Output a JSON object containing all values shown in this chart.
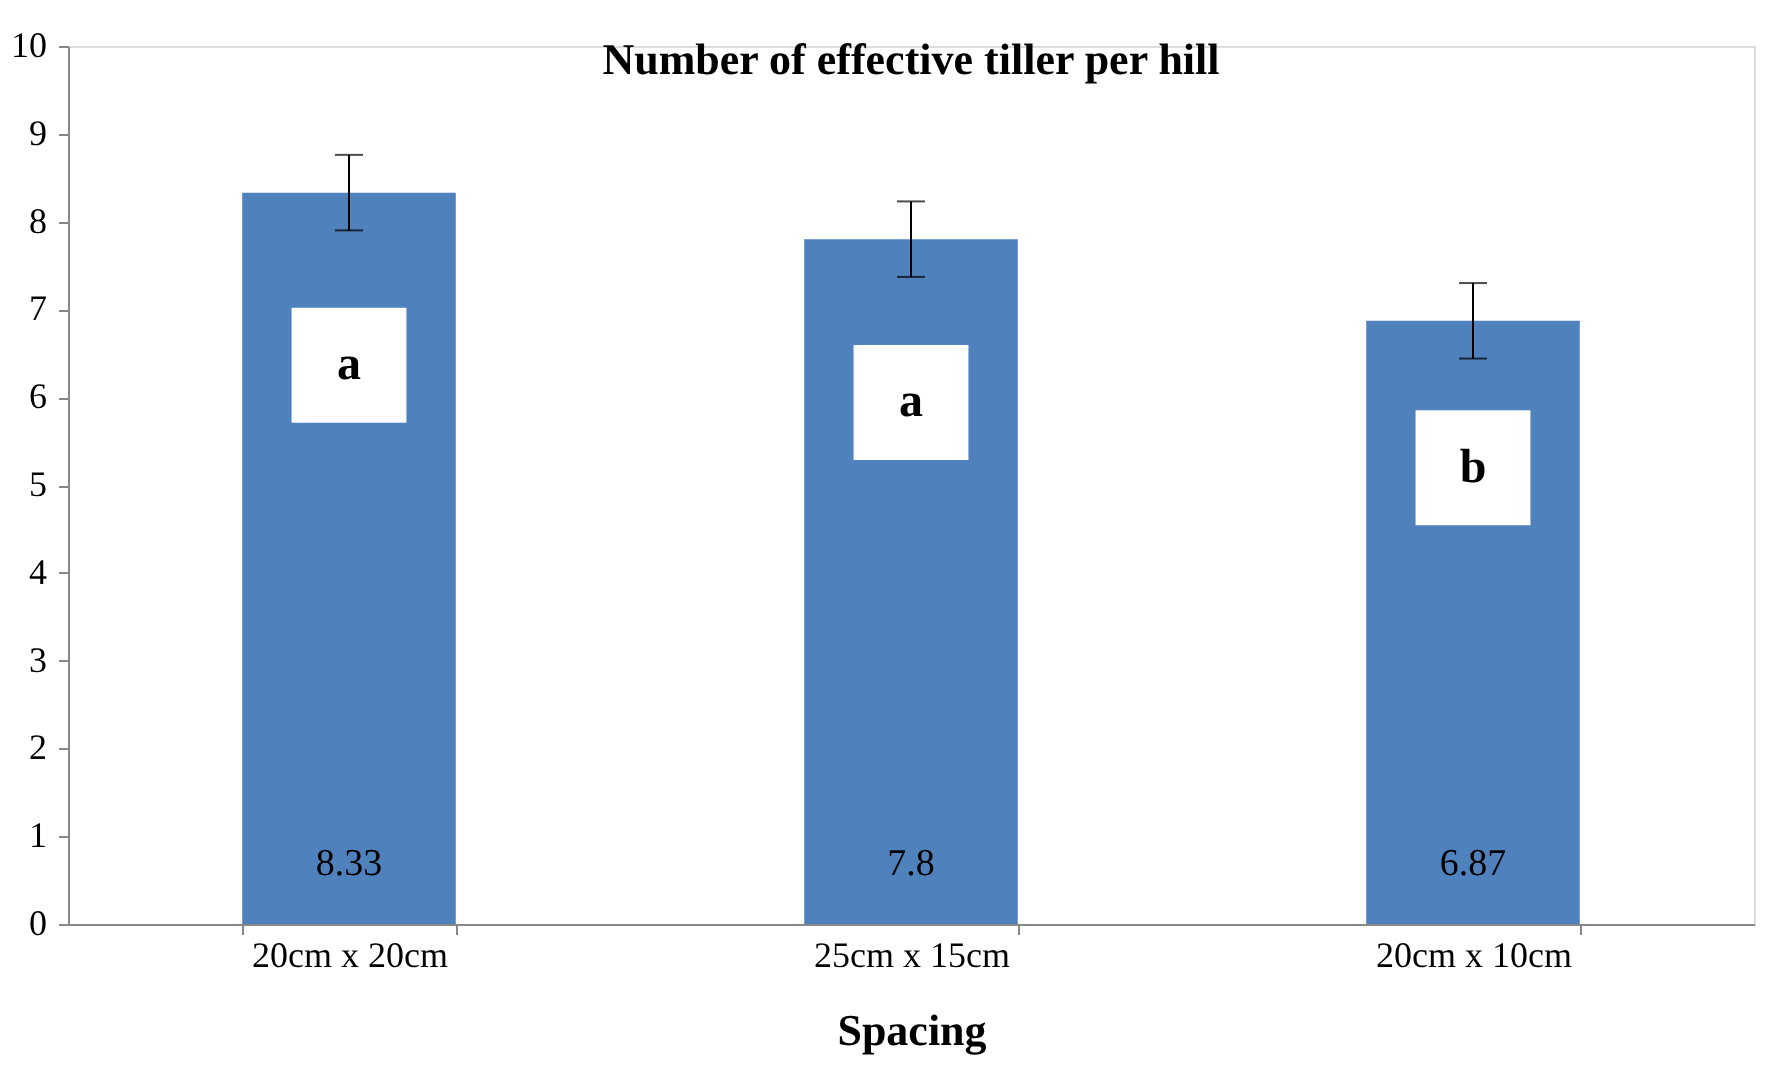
{
  "chart_data": {
    "type": "bar",
    "title": "Number of effective tiller per hill",
    "xlabel": "Spacing",
    "categories": [
      "20cm x 20cm",
      "25cm x 15cm",
      "20cm x 10cm"
    ],
    "values": [
      8.33,
      7.8,
      6.87
    ],
    "errors": [
      0.43,
      0.43,
      0.43
    ],
    "color": "#4f81bd",
    "ylim": [
      0,
      10
    ],
    "yticks": [
      0,
      1,
      2,
      3,
      4,
      5,
      6,
      7,
      8,
      9,
      10
    ],
    "grid": false,
    "data_labels": true,
    "annotations": [
      "a",
      "a",
      "b"
    ]
  }
}
